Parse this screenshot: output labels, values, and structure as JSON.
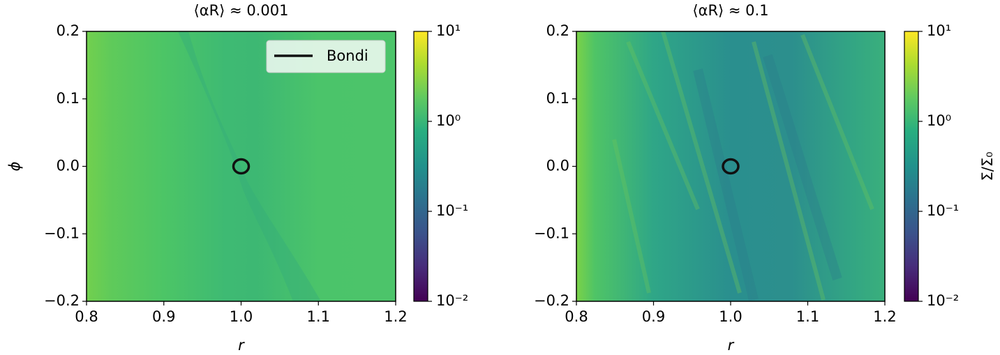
{
  "chart_data": [
    {
      "type": "heatmap",
      "title": "⟨αR⟩ ≈ 0.001",
      "xlabel": "r",
      "ylabel": "ϕ",
      "xlim": [
        0.8,
        1.2
      ],
      "xticks": [
        0.8,
        0.9,
        {
          "value": 1,
          "label": "1.0"
        },
        1.1,
        1.2
      ],
      "ylim": [
        -0.2,
        0.2
      ],
      "yticks": [
        {
          "value": -0.2,
          "label": "−0.2"
        },
        {
          "value": -0.1,
          "label": "−0.1"
        },
        {
          "value": 0,
          "label": "0.0"
        },
        0.1,
        0.2
      ],
      "colorbar": {
        "lim": [
          0.01,
          10
        ],
        "log": true,
        "ticks": [
          {
            "value": 0.01,
            "label": "10⁻²"
          },
          {
            "value": 0.1,
            "label": "10⁻¹"
          },
          {
            "value": 1,
            "label": "10⁰"
          },
          {
            "value": 10,
            "label": "10¹"
          }
        ]
      },
      "bondi": {
        "name": "Bondi",
        "color": "#111111",
        "x": 1,
        "y": 0
      },
      "legend": "upper right"
    },
    {
      "type": "heatmap",
      "title": "⟨αR⟩ ≈ 0.1",
      "xlabel": "r",
      "xlim": [
        0.8,
        1.2
      ],
      "xticks": [
        0.8,
        0.9,
        {
          "value": 1,
          "label": "1.0"
        },
        1.1,
        1.2
      ],
      "ylim": [
        -0.2,
        0.2
      ],
      "yticks": [
        {
          "value": -0.2,
          "label": "−0.2"
        },
        {
          "value": -0.1,
          "label": "−0.1"
        },
        {
          "value": 0,
          "label": "0.0"
        },
        0.1,
        0.2
      ],
      "colorbar": {
        "lim": [
          0.01,
          10
        ],
        "log": true,
        "label": "Σ/Σ₀",
        "ticks": [
          {
            "value": 0.01,
            "label": "10⁻²"
          },
          {
            "value": 0.1,
            "label": "10⁻¹"
          },
          {
            "value": 1,
            "label": "10⁰"
          },
          {
            "value": 10,
            "label": "10¹"
          }
        ]
      },
      "bondi": {
        "color": "#111111",
        "x": 1,
        "y": 0
      }
    }
  ]
}
